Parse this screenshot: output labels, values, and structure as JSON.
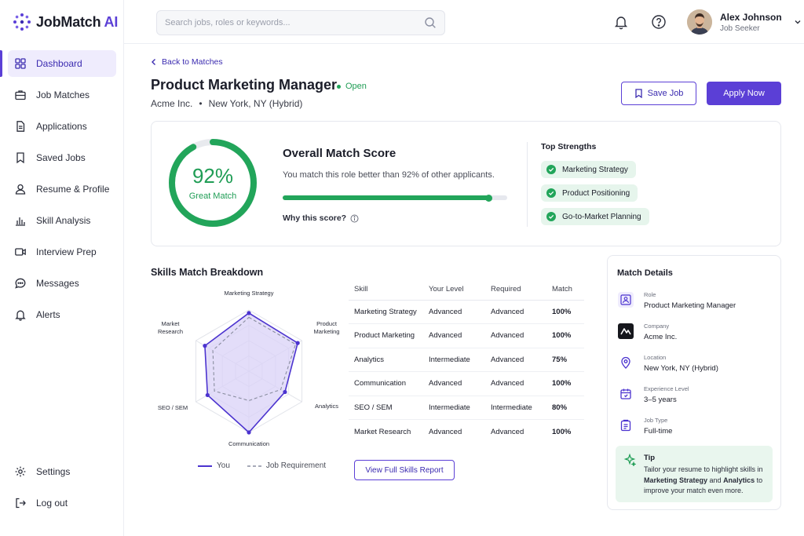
{
  "brand": {
    "name": "JobMatch",
    "suffix": "AI"
  },
  "sidebar": {
    "items": [
      {
        "label": "Dashboard",
        "icon": "grid-icon",
        "active": true
      },
      {
        "label": "Job Matches",
        "icon": "briefcase-icon"
      },
      {
        "label": "Applications",
        "icon": "document-icon"
      },
      {
        "label": "Saved Jobs",
        "icon": "bookmark-icon"
      },
      {
        "label": "Resume & Profile",
        "icon": "user-icon"
      },
      {
        "label": "Skill Analysis",
        "icon": "bar-chart-icon"
      },
      {
        "label": "Interview Prep",
        "icon": "video-icon"
      },
      {
        "label": "Messages",
        "icon": "chat-icon"
      },
      {
        "label": "Alerts",
        "icon": "bell-icon"
      }
    ],
    "bottom": [
      {
        "label": "Settings",
        "icon": "gear-icon"
      },
      {
        "label": "Log out",
        "icon": "logout-icon"
      }
    ]
  },
  "header": {
    "search_placeholder": "Search jobs, roles or keywords...",
    "user_name": "Alex Johnson",
    "user_role": "Job Seeker"
  },
  "job": {
    "back_label": "Back to Matches",
    "title": "Product Marketing Manager",
    "status": "Open",
    "company": "Acme Inc.",
    "separator": "•",
    "location": "New York, NY (Hybrid)",
    "save_label": "Save Job",
    "apply_label": "Apply Now"
  },
  "score": {
    "percent": 92,
    "percent_text": "92%",
    "label": "Great Match",
    "title": "Overall Match Score",
    "subtitle": "You match this role better than 92% of other applicants.",
    "why_label": "Why this score?",
    "colors": {
      "accent": "#22a55a",
      "track": "#e8eaee"
    }
  },
  "strengths": {
    "title": "Top Strengths",
    "items": [
      "Marketing Strategy",
      "Product Positioning",
      "Go-to-Market Planning"
    ]
  },
  "skills": {
    "title": "Skills Match Breakdown",
    "columns": [
      "Skill",
      "Your Level",
      "Required",
      "Match"
    ],
    "rows": [
      {
        "skill": "Marketing Strategy",
        "level": "Advanced",
        "required": "Advanced",
        "match": "100%",
        "tone": "green"
      },
      {
        "skill": "Product Marketing",
        "level": "Advanced",
        "required": "Advanced",
        "match": "100%",
        "tone": "green"
      },
      {
        "skill": "Analytics",
        "level": "Intermediate",
        "required": "Advanced",
        "match": "75%",
        "tone": "amber"
      },
      {
        "skill": "Communication",
        "level": "Advanced",
        "required": "Advanced",
        "match": "100%",
        "tone": "green"
      },
      {
        "skill": "SEO / SEM",
        "level": "Intermediate",
        "required": "Intermediate",
        "match": "80%",
        "tone": "amber"
      },
      {
        "skill": "Market Research",
        "level": "Advanced",
        "required": "Advanced",
        "match": "100%",
        "tone": "green"
      }
    ],
    "report_label": "View Full Skills Report"
  },
  "radar": {
    "axes": [
      "Marketing Strategy",
      "Product Marketing",
      "Analytics",
      "Communication",
      "SEO / SEM",
      "Market Research"
    ],
    "axis_labels": [
      [
        "Marketing Strategy"
      ],
      [
        "Product",
        "Marketing"
      ],
      [
        "Analytics"
      ],
      [
        "Communication"
      ],
      [
        "SEO / SEM"
      ],
      [
        "Market",
        "Research"
      ]
    ],
    "you": [
      0.95,
      0.92,
      0.68,
      1.0,
      0.78,
      0.83
    ],
    "requirement": [
      0.88,
      0.88,
      0.6,
      0.48,
      0.65,
      0.68
    ],
    "legend_you": "You",
    "legend_req": "Job Requirement",
    "colors": {
      "you": "#4b33cf",
      "fill": "#d9d1f7",
      "req": "#8a8ea0",
      "grid": "#e2e4ea"
    }
  },
  "details": {
    "title": "Match Details",
    "rows": [
      {
        "label": "Role",
        "value": "Product Marketing Manager",
        "icon": "role-icon"
      },
      {
        "label": "Company",
        "value": "Acme Inc.",
        "icon": "company-logo-icon"
      },
      {
        "label": "Location",
        "value": "New York, NY (Hybrid)",
        "icon": "location-pin-icon"
      },
      {
        "label": "Experience Level",
        "value": "3–5 years",
        "icon": "calendar-icon"
      },
      {
        "label": "Job Type",
        "value": "Full-time",
        "icon": "clipboard-icon"
      }
    ],
    "tip": {
      "title": "Tip",
      "text_1": "Tailor your resume to highlight skills in ",
      "skill_1": "Marketing Strategy",
      "text_2": " and ",
      "skill_2": "Analytics",
      "text_3": " to improve your match even more."
    }
  }
}
